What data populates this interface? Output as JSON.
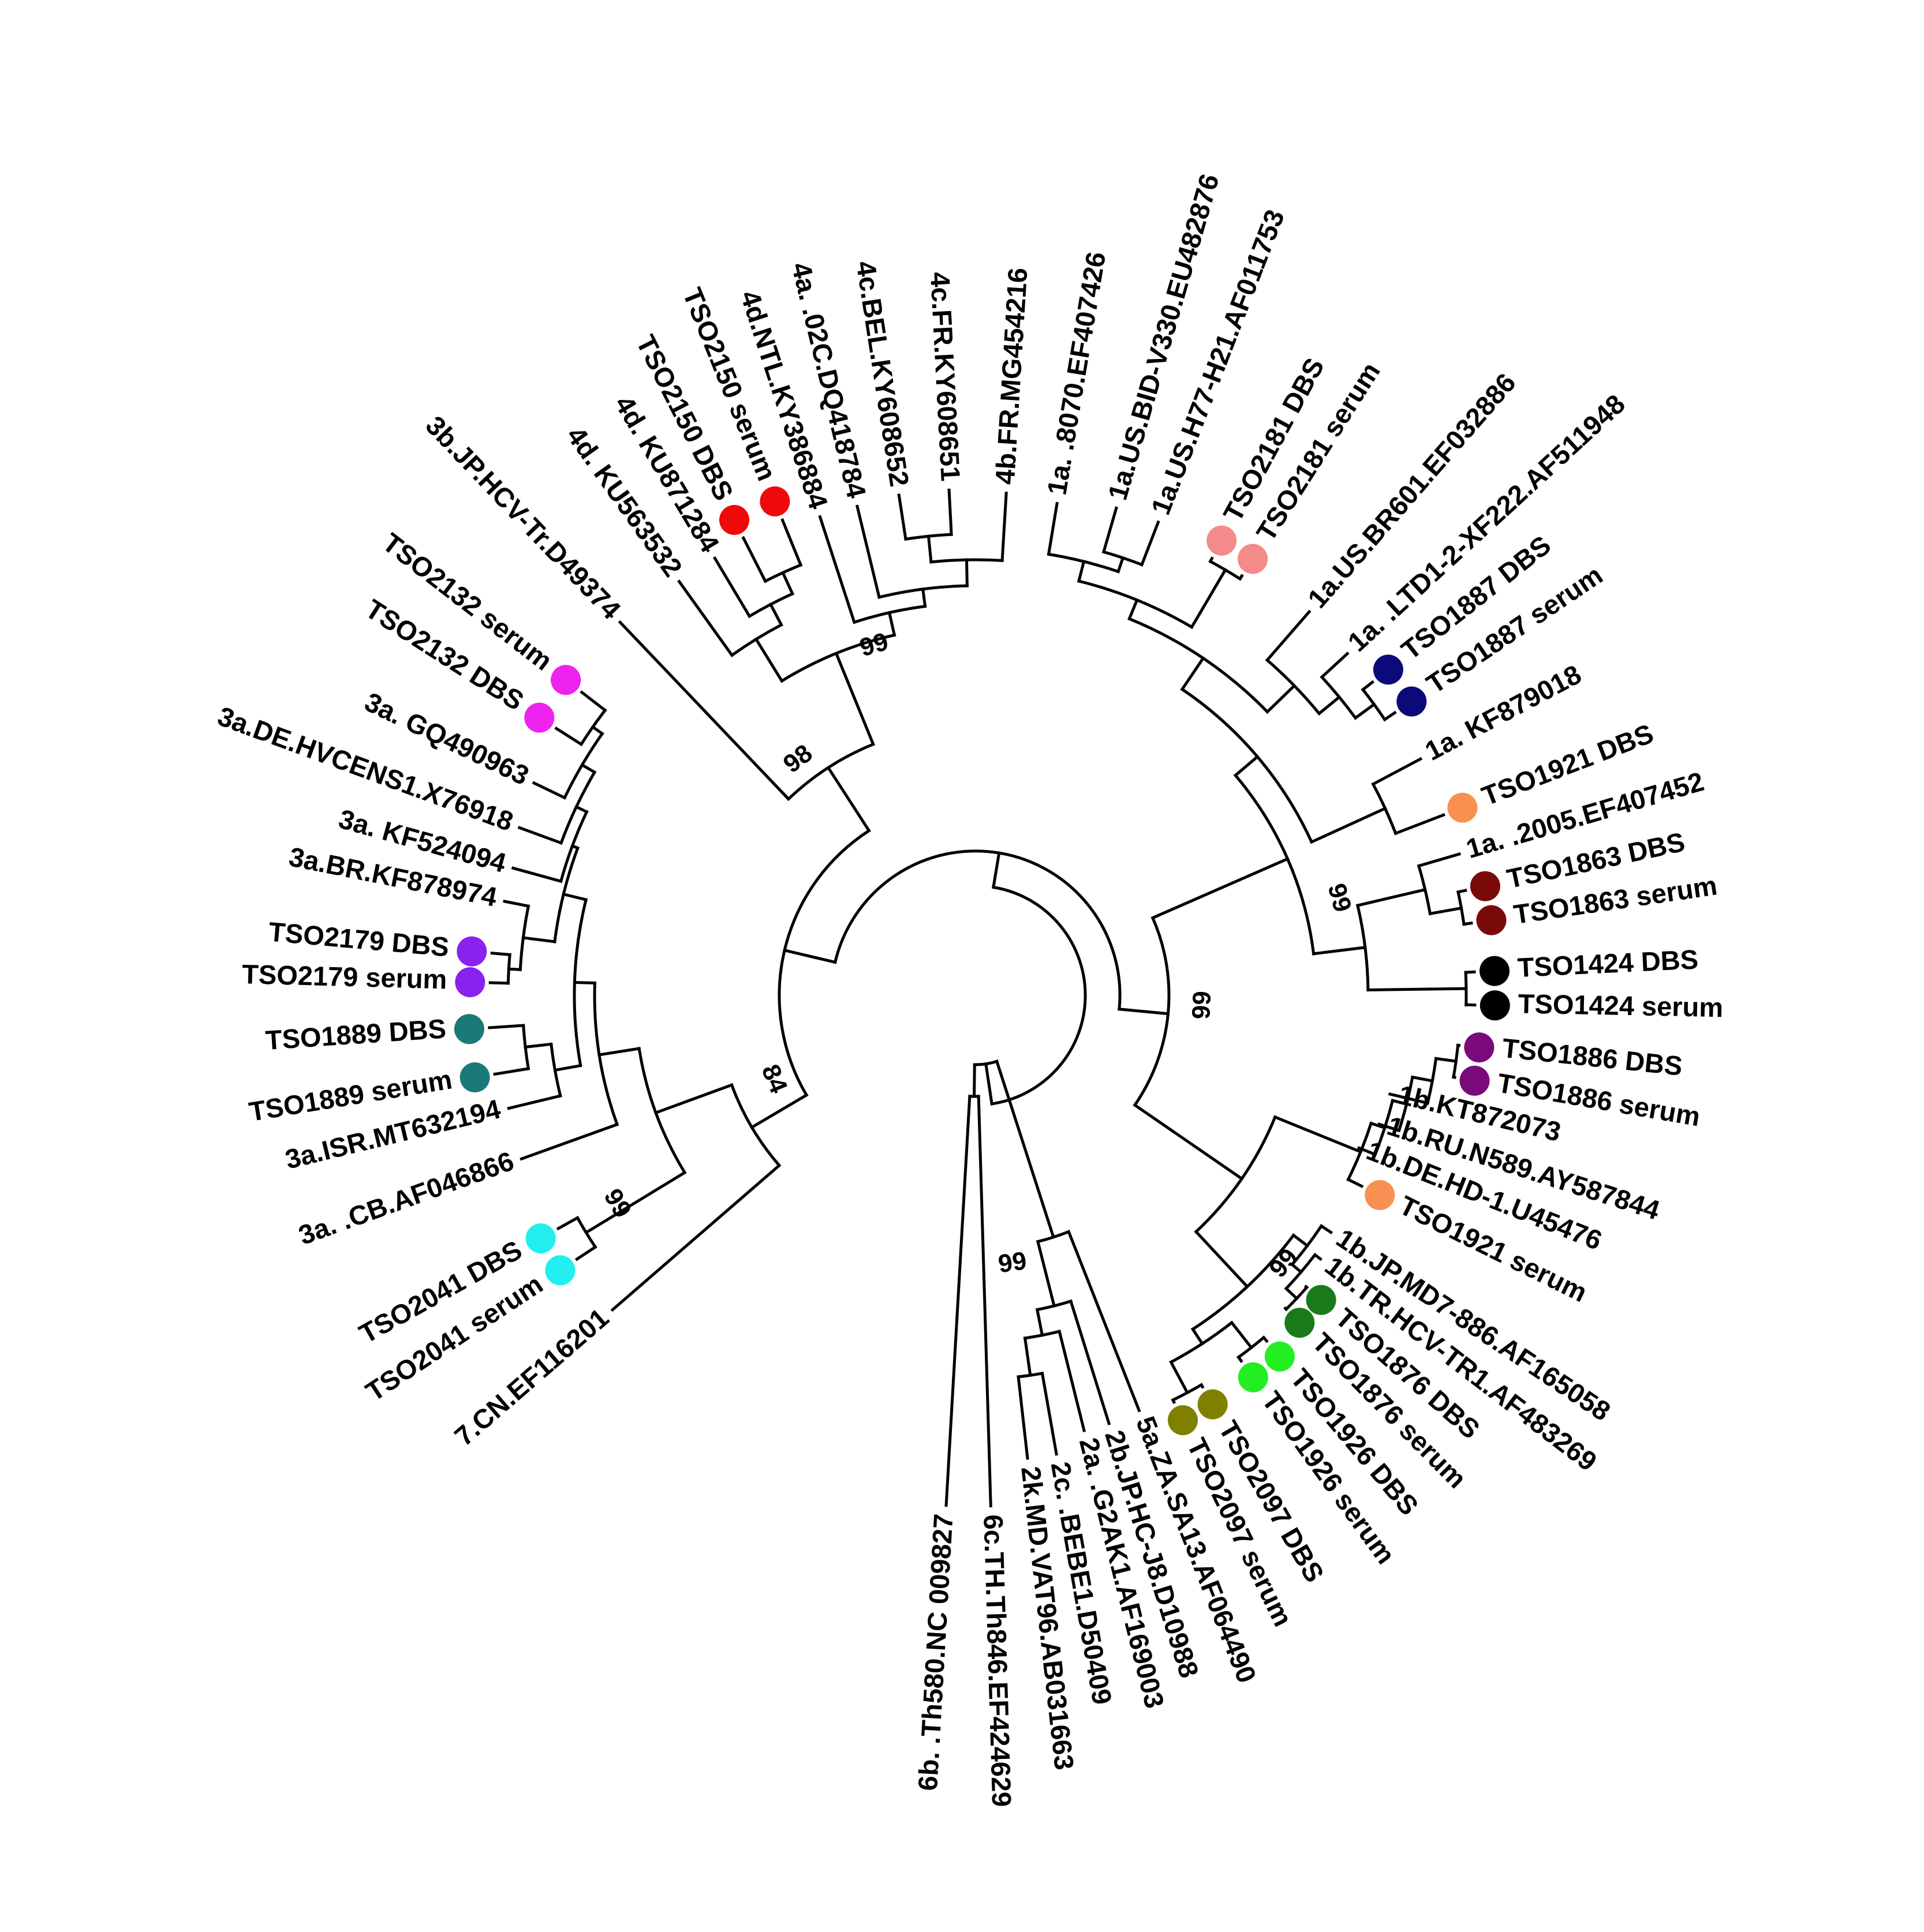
{
  "tree": {
    "leaves": [
      {
        "label": "6b. .Th580.NC 009827"
      },
      {
        "label": "6c.TH.Th846.EF424629"
      },
      {
        "label": "2k.MD.VAT96.AB031663"
      },
      {
        "label": "2c. .BEBE1.D50409"
      },
      {
        "label": "2a. .G2AK1.AF169003"
      },
      {
        "label": "2b.JP.HC-J8.D10988"
      },
      {
        "label": "5a.ZA.SA13.AF064490"
      },
      {
        "label": "TSO2097 serum",
        "color": "#808000"
      },
      {
        "label": "TSO2097 DBS",
        "color": "#808000"
      },
      {
        "label": "TSO1926 serum",
        "color": "#22ee22"
      },
      {
        "label": "TSO1926 DBS",
        "color": "#22ee22"
      },
      {
        "label": "TSO1876 serum",
        "color": "#1a7a1a"
      },
      {
        "label": "TSO1876 DBS",
        "color": "#1a7a1a"
      },
      {
        "label": "1b.TR.HCV-TR1.AF483269"
      },
      {
        "label": "1b.JP.MD7-886.AF165058"
      },
      {
        "label": "TSO1921 serum",
        "color": "#f79050"
      },
      {
        "label": "1b.DE.HD-1.U45476"
      },
      {
        "label": "1b.RU.N589.AY587844"
      },
      {
        "label": "1b.KT872073"
      },
      {
        "label": "TSO1886 serum",
        "color": "#7a0a7a"
      },
      {
        "label": "TSO1886 DBS",
        "color": "#7a0a7a"
      },
      {
        "label": "TSO1424 serum",
        "color": "#000000"
      },
      {
        "label": "TSO1424 DBS",
        "color": "#000000"
      },
      {
        "label": "TSO1863 serum",
        "color": "#7a0a0a"
      },
      {
        "label": "TSO1863 DBS",
        "color": "#7a0a0a"
      },
      {
        "label": "1a. .2005.EF407452"
      },
      {
        "label": "TSO1921 DBS",
        "color": "#f79050"
      },
      {
        "label": "1a. KF879018"
      },
      {
        "label": "TSO1887 serum",
        "color": "#0a0a7a"
      },
      {
        "label": "TSO1887 DBS",
        "color": "#0a0a7a"
      },
      {
        "label": "1a. .LTD1-2-XF222.AF511948"
      },
      {
        "label": "1a.US.BR601.EF032886"
      },
      {
        "label": "TSO2181 serum",
        "color": "#f48a8a"
      },
      {
        "label": "TSO2181 DBS",
        "color": "#f48a8a"
      },
      {
        "label": "1a.US.H77-H21.AF011753"
      },
      {
        "label": "1a.US.BID-V330.EU482876"
      },
      {
        "label": "1a. .8070.EF407426"
      },
      {
        "label": "4b.FR.MG454216"
      },
      {
        "label": "4c.FR.KY608651"
      },
      {
        "label": "4c.BEL.KY608652"
      },
      {
        "label": "4a. .02C.DQ418784"
      },
      {
        "label": "4d.NTL.KY386884"
      },
      {
        "label": "TSO2150 serum",
        "color": "#ee0a0a"
      },
      {
        "label": "TSO2150 DBS",
        "color": "#ee0a0a"
      },
      {
        "label": "4d. KU871284"
      },
      {
        "label": "4d. KU563532"
      },
      {
        "label": "3b.JP.HCV-Tr.D49374"
      },
      {
        "label": "TSO2132 serum",
        "color": "#ee22ee"
      },
      {
        "label": "TSO2132 DBS",
        "color": "#ee22ee"
      },
      {
        "label": "3a. GQ490963"
      },
      {
        "label": "3a.DE.HVCENS1.X76918"
      },
      {
        "label": "3a. KF524094"
      },
      {
        "label": "3a.BR.KF878974"
      },
      {
        "label": "TSO2179 DBS",
        "color": "#8a22ee"
      },
      {
        "label": "TSO2179 serum",
        "color": "#8a22ee"
      },
      {
        "label": "TSO1889 DBS",
        "color": "#1a7a7a"
      },
      {
        "label": "TSO1889 serum",
        "color": "#1a7a7a"
      },
      {
        "label": "3a.ISR.MT632194"
      },
      {
        "label": "3a. .CB.AF046866"
      },
      {
        "label": "TSO2041 DBS",
        "color": "#22eeee"
      },
      {
        "label": "TSO2041 serum",
        "color": "#22eeee"
      },
      {
        "label": "7.CN.EF116201"
      }
    ],
    "bootstrap": [
      "99",
      "99",
      "99",
      "99",
      "98",
      "99",
      "84",
      "99"
    ]
  }
}
